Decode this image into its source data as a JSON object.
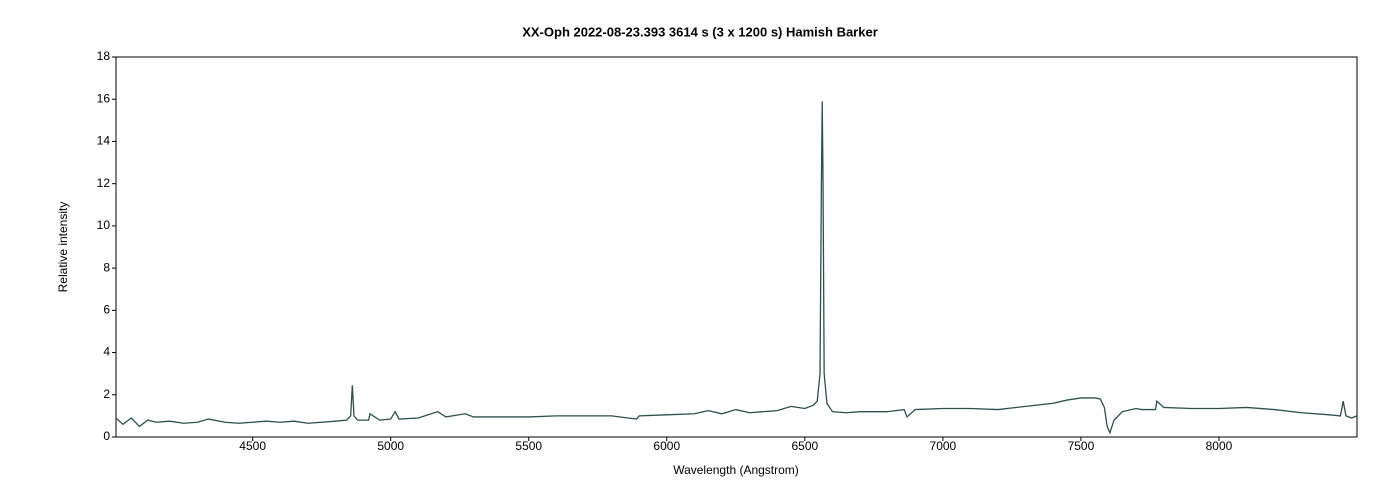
{
  "chart_data": {
    "type": "line",
    "title": "XX-Oph   2022-08-23.393   3614 s (3 x 1200 s)   Hamish Barker",
    "x_label": "Wavelength (Angstrom)",
    "y_label": "Relative intensity",
    "color": "#2f4f4f",
    "x": [
      4005,
      4030,
      4060,
      4090,
      4120,
      4150,
      4200,
      4250,
      4300,
      4340,
      4400,
      4450,
      4500,
      4550,
      4600,
      4650,
      4700,
      4750,
      4800,
      4840,
      4855,
      4861,
      4867,
      4880,
      4920,
      4925,
      4960,
      5000,
      5016,
      5030,
      5100,
      5170,
      5200,
      5270,
      5300,
      5400,
      5500,
      5600,
      5700,
      5800,
      5890,
      5900,
      6000,
      6100,
      6150,
      6200,
      6250,
      6300,
      6400,
      6450,
      6500,
      6530,
      6545,
      6555,
      6560,
      6563,
      6566,
      6570,
      6580,
      6600,
      6650,
      6700,
      6800,
      6860,
      6870,
      6900,
      7000,
      7100,
      7200,
      7300,
      7400,
      7450,
      7500,
      7550,
      7570,
      7585,
      7595,
      7605,
      7620,
      7650,
      7700,
      7720,
      7770,
      7775,
      7800,
      7900,
      8000,
      8100,
      8200,
      8300,
      8400,
      8440,
      8450,
      8460,
      8480,
      8500
    ],
    "values": [
      0.9,
      0.6,
      0.9,
      0.5,
      0.8,
      0.7,
      0.75,
      0.65,
      0.7,
      0.85,
      0.7,
      0.65,
      0.7,
      0.75,
      0.7,
      0.75,
      0.65,
      0.7,
      0.75,
      0.8,
      1.0,
      2.45,
      1.0,
      0.8,
      0.8,
      1.1,
      0.8,
      0.85,
      1.2,
      0.85,
      0.9,
      1.2,
      0.95,
      1.1,
      0.95,
      0.95,
      0.95,
      1.0,
      1.0,
      1.0,
      0.85,
      1.0,
      1.05,
      1.1,
      1.25,
      1.1,
      1.3,
      1.15,
      1.25,
      1.45,
      1.35,
      1.5,
      1.7,
      3,
      12,
      15.9,
      12,
      3,
      1.6,
      1.2,
      1.15,
      1.2,
      1.2,
      1.3,
      0.95,
      1.3,
      1.35,
      1.35,
      1.3,
      1.45,
      1.6,
      1.75,
      1.85,
      1.85,
      1.8,
      1.4,
      0.5,
      0.2,
      0.8,
      1.2,
      1.35,
      1.3,
      1.3,
      1.7,
      1.4,
      1.35,
      1.35,
      1.4,
      1.3,
      1.15,
      1.05,
      1.0,
      1.7,
      1.0,
      0.9,
      1.0
    ],
    "xlim": [
      4005,
      8500
    ],
    "xticks": [
      4500,
      5000,
      5500,
      6000,
      6500,
      7000,
      7500,
      8000
    ],
    "ylim": [
      0,
      18
    ],
    "yticks": [
      0,
      2,
      4,
      6,
      8,
      10,
      12,
      14,
      16,
      18
    ]
  }
}
